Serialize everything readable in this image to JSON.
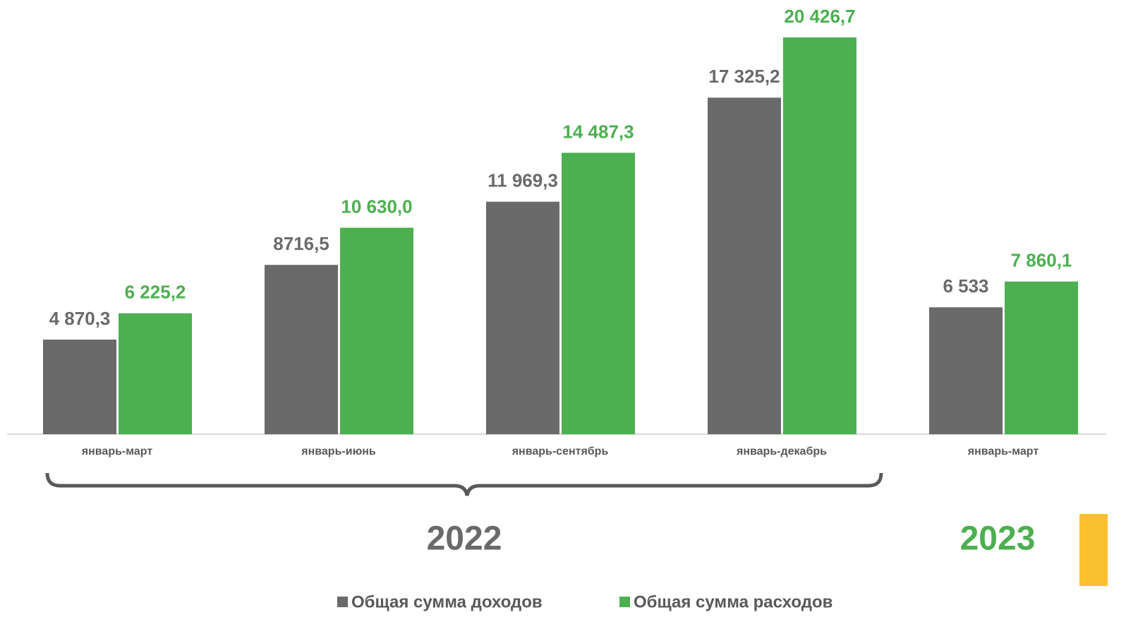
{
  "chart_data": {
    "type": "bar",
    "categories": [
      "январь-март",
      "январь-июнь",
      "январь-сентябрь",
      "январь-декабрь",
      "январь-март"
    ],
    "series": [
      {
        "name": "Общая сумма доходов",
        "color": "#6a6a6a",
        "values": [
          4870.3,
          8716.5,
          11969.3,
          17325.2,
          6533
        ],
        "value_labels": [
          "4 870,3",
          "8716,5",
          "11 969,3",
          "17 325,2",
          "6 533"
        ]
      },
      {
        "name": "Общая сумма расходов",
        "color": "#4caf50",
        "values": [
          6225.2,
          10630.0,
          14487.3,
          20426.7,
          7860.1
        ],
        "value_labels": [
          "6 225,2",
          "10 630,0",
          "14 487,3",
          "20 426,7",
          "7 860,1"
        ]
      }
    ],
    "annotations": [
      "2022",
      "2023"
    ]
  }
}
